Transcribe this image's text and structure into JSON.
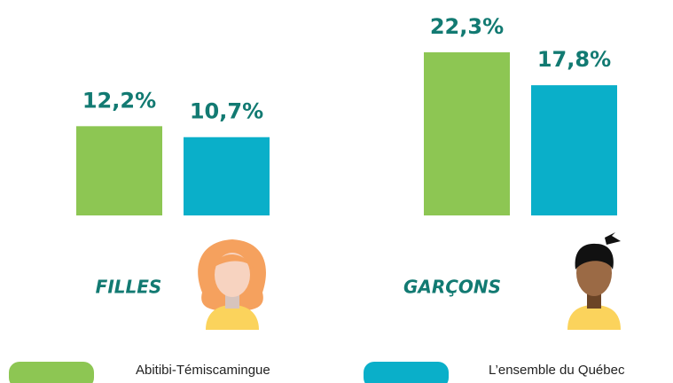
{
  "chart_data": {
    "type": "bar",
    "categories": [
      "FILLES",
      "GARÇONS"
    ],
    "series": [
      {
        "name": "Abitibi-Témiscamingue",
        "color": "#8dc653",
        "values": [
          12.2,
          22.3
        ],
        "value_labels": [
          "12,2%",
          "22,3%"
        ]
      },
      {
        "name": "L’ensemble du Québec",
        "color": "#0aafc9",
        "values": [
          10.7,
          17.8
        ],
        "value_labels": [
          "10,7%",
          "17,8%"
        ]
      }
    ]
  }
}
